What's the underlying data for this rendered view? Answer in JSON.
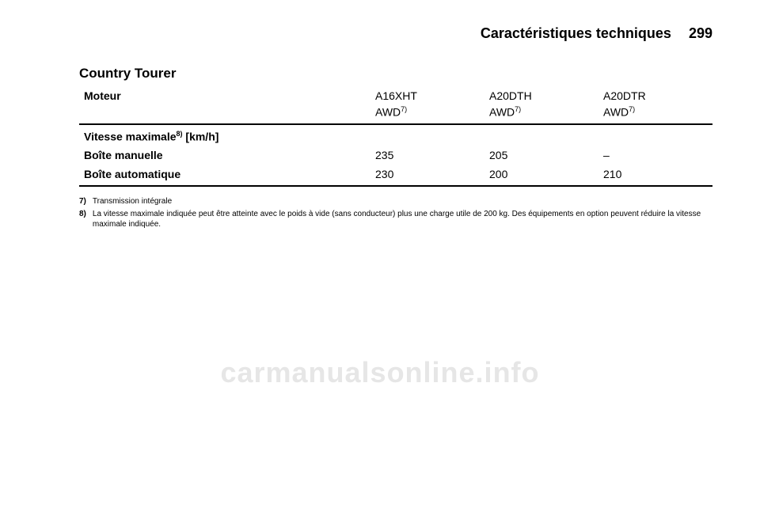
{
  "header": {
    "title": "Caractéristiques techniques",
    "page_number": "299"
  },
  "section_title": "Country Tourer",
  "table": {
    "row_labels": {
      "moteur": "Moteur",
      "awd_note": "AWD",
      "vmax_header": "Vitesse maximale",
      "vmax_unit": " [km/h]",
      "boite_manuelle": "Boîte manuelle",
      "boite_auto": "Boîte automatique"
    },
    "columns": [
      {
        "engine": "A16XHT",
        "drive": "AWD",
        "manuelle": "235",
        "auto": "230"
      },
      {
        "engine": "A20DTH",
        "drive": "AWD",
        "manuelle": "205",
        "auto": "200"
      },
      {
        "engine": "A20DTR",
        "drive": "AWD",
        "manuelle": "–",
        "auto": "210"
      }
    ],
    "sup_drive": "7)",
    "sup_vmax": "8)"
  },
  "footnotes": [
    {
      "marker": "7)",
      "text": "Transmission intégrale"
    },
    {
      "marker": "8)",
      "text": "La vitesse maximale indiquée peut être atteinte avec le poids à vide (sans conducteur) plus une charge utile de 200 kg. Des équipements en option peuvent réduire la vitesse maximale indiquée."
    }
  ],
  "watermark": "carmanualsonline.info"
}
